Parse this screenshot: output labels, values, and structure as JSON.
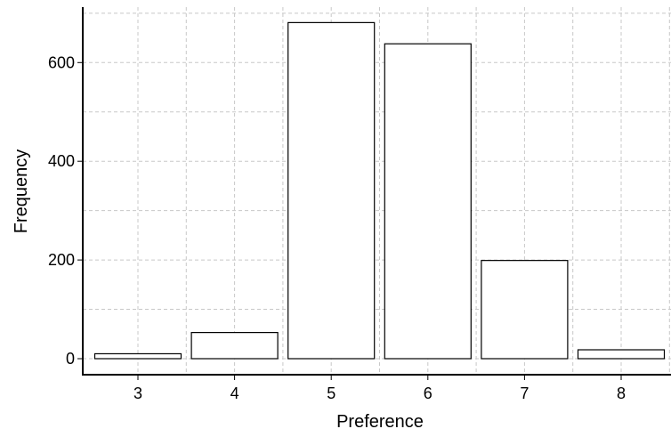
{
  "chart_data": {
    "type": "bar",
    "categories": [
      "3",
      "4",
      "5",
      "6",
      "7",
      "8"
    ],
    "values": [
      10,
      53,
      681,
      638,
      199,
      18
    ],
    "xlabel": "Preference",
    "ylabel": "Frequency",
    "y_ticks": [
      0,
      200,
      400,
      600
    ],
    "ylim": [
      -20,
      710
    ],
    "grid": true,
    "colors": {
      "bar_fill": "#ffffff",
      "bar_stroke": "#000000",
      "grid": "#c8c8c8"
    }
  }
}
